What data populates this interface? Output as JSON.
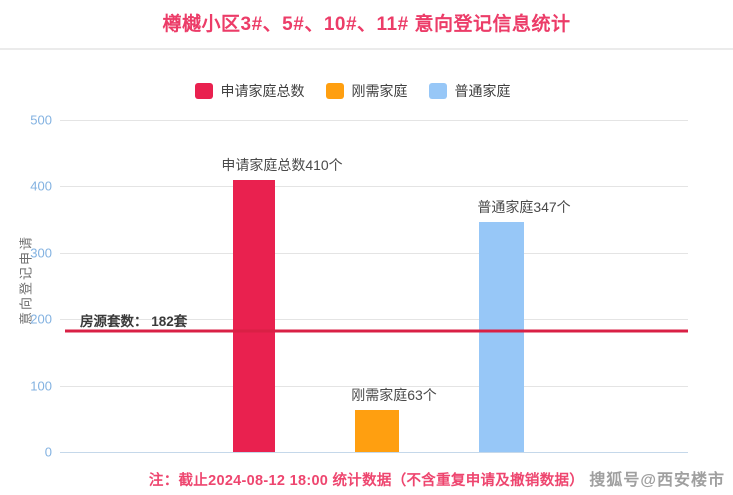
{
  "page": {
    "title": "樽樾小区3#、5#、10#、11# 意向登记信息统计",
    "footnote": "注：截止2024-08-12 18:00 统计数据（不含重复申请及撤销数据）",
    "watermark": "搜狐号@西安楼市"
  },
  "colors": {
    "title": "#ec3c68",
    "footnote": "#ee466f",
    "tick_label": "#83b2e1",
    "grid": "#e4e4e4"
  },
  "chart_data": {
    "type": "bar",
    "title": "樽樾小区3#、5#、10#、11# 意向登记信息统计",
    "xlabel": "",
    "ylabel": "意向登记申请",
    "ylim": [
      0,
      500
    ],
    "yticks": [
      0,
      100,
      200,
      300,
      400,
      500
    ],
    "grid": true,
    "legend_position": "top",
    "series": [
      {
        "name": "申请家庭总数",
        "value": 410,
        "label": "申请家庭总数410个",
        "color": "#e9214f"
      },
      {
        "name": "刚需家庭",
        "value": 63,
        "label": "刚需家庭63个",
        "color": "#ff9f10"
      },
      {
        "name": "普通家庭",
        "value": 347,
        "label": "普通家庭347个",
        "color": "#97c7f7"
      }
    ],
    "reference_line": {
      "value": 182,
      "label": "房源套数： 182套",
      "color": "#d92045"
    }
  }
}
